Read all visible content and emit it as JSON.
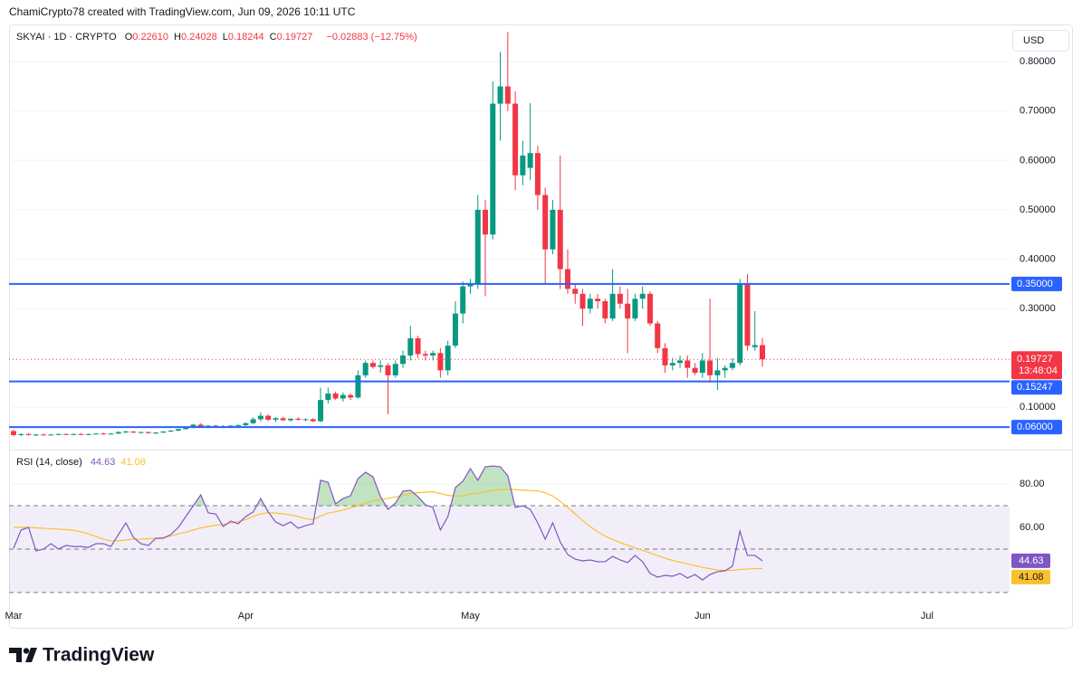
{
  "attribution": "ChamiCrypto78 created with TradingView.com, Jun 09, 2026 10:11 UTC",
  "logo": "TradingView",
  "chart_data": [
    {
      "type": "candlestick",
      "symbol": "SKYAI · 1D · CRYPTO",
      "ohlc_legend": [
        {
          "key": "O",
          "text": "0.22610"
        },
        {
          "key": "H",
          "text": "0.24028"
        },
        {
          "key": "L",
          "text": "0.18244"
        },
        {
          "key": "C",
          "text": "0.19727"
        }
      ],
      "change": "−0.02883 (−12.75%)",
      "currency": "USD",
      "up_color": "#089981",
      "down_color": "#f23645",
      "open": [
        0.052,
        0.044,
        0.046,
        0.044,
        0.045,
        0.044,
        0.045,
        0.046,
        0.045,
        0.046,
        0.045,
        0.046,
        0.047,
        0.046,
        0.047,
        0.05,
        0.051,
        0.049,
        0.05,
        0.048,
        0.049,
        0.051,
        0.053,
        0.056,
        0.06,
        0.065,
        0.061,
        0.063,
        0.061,
        0.062,
        0.063,
        0.064,
        0.068,
        0.076,
        0.083,
        0.075,
        0.078,
        0.074,
        0.077,
        0.075,
        0.076,
        0.072,
        0.115,
        0.128,
        0.118,
        0.125,
        0.12,
        0.165,
        0.19,
        0.182,
        0.185,
        0.165,
        0.188,
        0.205,
        0.24,
        0.208,
        0.205,
        0.21,
        0.175,
        0.225,
        0.29,
        0.345,
        0.35,
        0.5,
        0.45,
        0.715,
        0.75,
        0.715,
        0.57,
        0.585,
        0.615,
        0.53,
        0.42,
        0.5,
        0.38,
        0.34,
        0.33,
        0.3,
        0.32,
        0.315,
        0.28,
        0.33,
        0.31,
        0.28,
        0.32,
        0.33,
        0.27,
        0.22,
        0.185,
        0.19,
        0.195,
        0.18,
        0.17,
        0.195,
        0.165,
        0.175,
        0.18,
        0.19,
        0.35,
        0.222,
        0.2261
      ],
      "high": [
        0.055,
        0.047,
        0.048,
        0.046,
        0.047,
        0.046,
        0.047,
        0.047,
        0.047,
        0.048,
        0.047,
        0.048,
        0.049,
        0.048,
        0.052,
        0.053,
        0.052,
        0.051,
        0.051,
        0.05,
        0.052,
        0.054,
        0.057,
        0.061,
        0.066,
        0.068,
        0.064,
        0.065,
        0.064,
        0.064,
        0.066,
        0.07,
        0.08,
        0.09,
        0.086,
        0.08,
        0.081,
        0.078,
        0.08,
        0.078,
        0.078,
        0.14,
        0.14,
        0.132,
        0.13,
        0.128,
        0.175,
        0.195,
        0.195,
        0.195,
        0.19,
        0.195,
        0.215,
        0.265,
        0.245,
        0.215,
        0.215,
        0.22,
        0.235,
        0.315,
        0.355,
        0.36,
        0.53,
        0.52,
        0.76,
        0.82,
        0.86,
        0.74,
        0.64,
        0.716,
        0.63,
        0.545,
        0.52,
        0.61,
        0.42,
        0.35,
        0.34,
        0.33,
        0.33,
        0.32,
        0.38,
        0.345,
        0.34,
        0.33,
        0.345,
        0.335,
        0.275,
        0.23,
        0.2,
        0.205,
        0.205,
        0.19,
        0.21,
        0.32,
        0.2,
        0.185,
        0.2,
        0.36,
        0.37,
        0.295,
        0.24028
      ],
      "low": [
        0.041,
        0.042,
        0.043,
        0.042,
        0.043,
        0.043,
        0.044,
        0.044,
        0.044,
        0.044,
        0.044,
        0.045,
        0.045,
        0.045,
        0.046,
        0.048,
        0.048,
        0.047,
        0.047,
        0.046,
        0.048,
        0.05,
        0.052,
        0.055,
        0.058,
        0.06,
        0.058,
        0.06,
        0.058,
        0.059,
        0.06,
        0.062,
        0.066,
        0.072,
        0.072,
        0.07,
        0.072,
        0.071,
        0.073,
        0.072,
        0.07,
        0.07,
        0.108,
        0.115,
        0.112,
        0.115,
        0.118,
        0.16,
        0.178,
        0.17,
        0.086,
        0.16,
        0.18,
        0.195,
        0.2,
        0.195,
        0.195,
        0.16,
        0.165,
        0.22,
        0.27,
        0.33,
        0.34,
        0.325,
        0.44,
        0.64,
        0.7,
        0.54,
        0.55,
        0.56,
        0.5,
        0.35,
        0.41,
        0.34,
        0.33,
        0.31,
        0.265,
        0.29,
        0.3,
        0.27,
        0.275,
        0.3,
        0.21,
        0.275,
        0.3,
        0.265,
        0.21,
        0.17,
        0.175,
        0.18,
        0.16,
        0.165,
        0.16,
        0.15,
        0.135,
        0.16,
        0.175,
        0.185,
        0.215,
        0.215,
        0.18244
      ],
      "close": [
        0.044,
        0.046,
        0.044,
        0.045,
        0.044,
        0.045,
        0.046,
        0.045,
        0.046,
        0.045,
        0.046,
        0.047,
        0.046,
        0.047,
        0.05,
        0.051,
        0.049,
        0.05,
        0.048,
        0.049,
        0.051,
        0.053,
        0.056,
        0.06,
        0.065,
        0.061,
        0.063,
        0.061,
        0.062,
        0.063,
        0.064,
        0.068,
        0.076,
        0.083,
        0.075,
        0.078,
        0.074,
        0.077,
        0.075,
        0.076,
        0.072,
        0.115,
        0.128,
        0.118,
        0.125,
        0.12,
        0.165,
        0.19,
        0.182,
        0.185,
        0.165,
        0.188,
        0.205,
        0.24,
        0.208,
        0.205,
        0.21,
        0.175,
        0.225,
        0.29,
        0.345,
        0.35,
        0.5,
        0.45,
        0.715,
        0.75,
        0.715,
        0.57,
        0.61,
        0.615,
        0.53,
        0.42,
        0.5,
        0.38,
        0.34,
        0.33,
        0.3,
        0.32,
        0.315,
        0.28,
        0.33,
        0.31,
        0.28,
        0.32,
        0.33,
        0.27,
        0.22,
        0.185,
        0.19,
        0.195,
        0.18,
        0.17,
        0.195,
        0.165,
        0.175,
        0.18,
        0.19,
        0.35,
        0.225,
        0.2261,
        0.19727
      ],
      "ylim": [
        0.02,
        0.87
      ],
      "yticks": [
        {
          "value": 0.1,
          "label": "0.10000"
        },
        {
          "value": 0.3,
          "label": "0.30000"
        },
        {
          "value": 0.4,
          "label": "0.40000"
        },
        {
          "value": 0.5,
          "label": "0.50000"
        },
        {
          "value": 0.6,
          "label": "0.60000"
        },
        {
          "value": 0.7,
          "label": "0.70000"
        },
        {
          "value": 0.8,
          "label": "0.80000"
        }
      ],
      "grid": true,
      "hline_color": "#2962ff",
      "hlines": [
        {
          "value": 0.35,
          "label": "0.35000"
        },
        {
          "value": 0.15247,
          "label": "0.15247"
        },
        {
          "value": 0.06,
          "label": "0.06000"
        }
      ],
      "last_price": {
        "value": 0.19727,
        "label": "0.19727",
        "countdown": "13:48:04"
      }
    },
    {
      "type": "line",
      "title": "RSI (14, close)",
      "categories": [
        "Mar",
        null,
        null,
        null,
        null,
        null,
        null,
        null,
        null,
        null,
        null,
        null,
        null,
        null,
        null,
        null,
        null,
        null,
        null,
        null,
        null,
        null,
        null,
        null,
        null,
        null,
        null,
        null,
        null,
        null,
        null,
        "Apr",
        null,
        null,
        null,
        null,
        null,
        null,
        null,
        null,
        null,
        null,
        null,
        null,
        null,
        null,
        null,
        null,
        null,
        null,
        null,
        null,
        null,
        null,
        null,
        null,
        null,
        null,
        null,
        null,
        null,
        "May",
        null,
        null,
        null,
        null,
        null,
        null,
        null,
        null,
        null,
        null,
        null,
        null,
        null,
        null,
        null,
        null,
        null,
        null,
        null,
        null,
        null,
        null,
        null,
        null,
        null,
        null,
        null,
        null,
        null,
        null,
        "Jun",
        null,
        null,
        null,
        null,
        null,
        null,
        null,
        null,
        null,
        null,
        null,
        null,
        null,
        null,
        null,
        null,
        null,
        null,
        null,
        null,
        null,
        null,
        null,
        null,
        null,
        null,
        null,
        null,
        null,
        "Jul"
      ],
      "series": [
        {
          "color": "#7e57c2",
          "values": [
            50.4,
            58.8,
            60,
            49.2,
            50,
            52.5,
            50,
            51.7,
            51.2,
            51.2,
            50.8,
            52.5,
            52.5,
            51.2,
            56.7,
            62.1,
            55.4,
            52.5,
            51.7,
            55,
            55,
            56.7,
            60,
            65,
            70,
            75,
            66.7,
            66.2,
            60.4,
            62.9,
            61.7,
            65,
            67.1,
            73.3,
            67.1,
            62.5,
            60.8,
            62.5,
            59.6,
            60.8,
            61.7,
            81.7,
            80.8,
            70.8,
            73.3,
            74.6,
            82.5,
            85.4,
            83.3,
            74.2,
            68.3,
            71.2,
            76.7,
            77.1,
            74.2,
            70.4,
            69.2,
            58.8,
            65,
            78.3,
            81.3,
            87.1,
            81.7,
            87.9,
            88.3,
            87.9,
            83.8,
            69.2,
            70,
            68.3,
            62.1,
            54.6,
            62.1,
            53.3,
            47.5,
            45.4,
            44.6,
            45,
            44.2,
            44.2,
            46.7,
            45,
            43.8,
            47.1,
            44.2,
            38.8,
            37.1,
            37.9,
            37.5,
            38.8,
            36.7,
            38.3,
            35.8,
            38.3,
            39.6,
            40,
            42.1,
            58.3,
            47.1,
            47.1,
            44.63,
            null,
            null,
            null,
            null,
            null,
            null,
            null,
            null,
            null,
            null,
            null,
            null,
            null,
            null,
            null,
            null,
            null,
            null,
            null,
            null,
            null,
            null
          ]
        },
        {
          "color": "#fbc02d",
          "values": [
            60,
            60,
            60,
            59.8,
            59.6,
            59.4,
            59.2,
            59,
            58.6,
            58,
            57,
            55.8,
            54.6,
            53.8,
            53.8,
            54.2,
            54.6,
            54.6,
            54.8,
            55,
            55.4,
            56,
            57,
            57.8,
            58.8,
            59.8,
            60.4,
            61,
            61.4,
            62,
            62.6,
            63.6,
            65,
            66.2,
            66.8,
            66.6,
            66.2,
            65.8,
            65,
            64,
            63.6,
            65.2,
            66.6,
            67.2,
            68,
            69,
            70,
            71.2,
            72.2,
            72.8,
            73.4,
            74,
            74.8,
            75.6,
            76,
            76.2,
            76.4,
            75.6,
            74.8,
            74.4,
            74.6,
            75.4,
            75.8,
            76.4,
            77,
            77.4,
            77.6,
            77.4,
            77.2,
            77,
            76.8,
            76,
            74.4,
            72,
            69.2,
            66.2,
            63.2,
            60.4,
            58,
            56,
            54.4,
            53,
            51.8,
            50.6,
            49.4,
            48.2,
            47,
            45.8,
            44.8,
            44,
            43.2,
            42.4,
            41.6,
            41,
            40.4,
            40.2,
            40.2,
            40.6,
            40.8,
            41,
            41.08,
            null,
            null,
            null,
            null,
            null,
            null,
            null,
            null,
            null,
            null,
            null,
            null,
            null,
            null,
            null,
            null,
            null,
            null,
            null,
            null,
            null,
            null
          ]
        }
      ],
      "ylim": [
        25,
        95
      ],
      "yticks": [
        {
          "value": 60,
          "label": "60.00"
        },
        {
          "value": 80,
          "label": "80.00"
        }
      ],
      "levels": [
        30,
        50,
        70
      ],
      "band": [
        30,
        70
      ],
      "band_color": "#7e57c2",
      "overbought_color": "#4caf50"
    }
  ]
}
